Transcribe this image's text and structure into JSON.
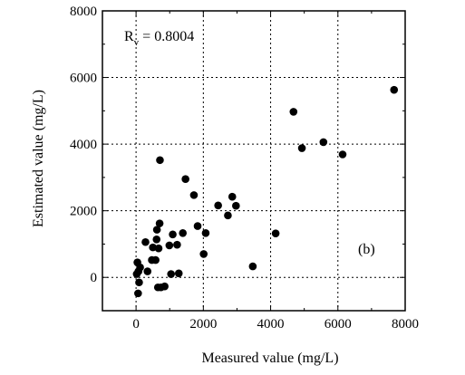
{
  "chart_data": {
    "type": "scatter",
    "xlabel": "Measured value (mg/L)",
    "ylabel": "Estimated value (mg/L)",
    "xlim": [
      -1000,
      8000
    ],
    "ylim": [
      -1000,
      8000
    ],
    "x_ticks": [
      0,
      2000,
      4000,
      6000,
      8000
    ],
    "y_ticks": [
      0,
      2000,
      4000,
      6000,
      8000
    ],
    "x_tick_labels": [
      "0",
      "2000",
      "4000",
      "6000",
      "8000"
    ],
    "y_tick_labels": [
      "0",
      "2000",
      "4000",
      "6000",
      "8000"
    ],
    "grid": true,
    "grid_style": "dotted",
    "marker_color": "#000000",
    "annotation_r": {
      "base": "R",
      "sub": "v",
      "text": " = 0.8004"
    },
    "panel_label": "(b)",
    "series": [
      {
        "points": [
          [
            40,
            450
          ],
          [
            70,
            180
          ],
          [
            20,
            100
          ],
          [
            90,
            -150
          ],
          [
            60,
            -480
          ],
          [
            120,
            300
          ],
          [
            280,
            1060
          ],
          [
            340,
            180
          ],
          [
            470,
            520
          ],
          [
            500,
            900
          ],
          [
            610,
            1140
          ],
          [
            620,
            1430
          ],
          [
            580,
            520
          ],
          [
            670,
            870
          ],
          [
            700,
            1620
          ],
          [
            710,
            3520
          ],
          [
            650,
            -300
          ],
          [
            740,
            -300
          ],
          [
            850,
            -270
          ],
          [
            990,
            960
          ],
          [
            1090,
            1290
          ],
          [
            1040,
            100
          ],
          [
            1220,
            980
          ],
          [
            1270,
            120
          ],
          [
            1390,
            1330
          ],
          [
            1470,
            2950
          ],
          [
            1720,
            2470
          ],
          [
            1830,
            1540
          ],
          [
            2010,
            700
          ],
          [
            2070,
            1330
          ],
          [
            2440,
            2160
          ],
          [
            2730,
            1860
          ],
          [
            2860,
            2420
          ],
          [
            2970,
            2150
          ],
          [
            3470,
            330
          ],
          [
            4150,
            1320
          ],
          [
            4680,
            4970
          ],
          [
            4930,
            3880
          ],
          [
            5570,
            4060
          ],
          [
            6140,
            3690
          ],
          [
            7670,
            5630
          ]
        ]
      }
    ]
  }
}
